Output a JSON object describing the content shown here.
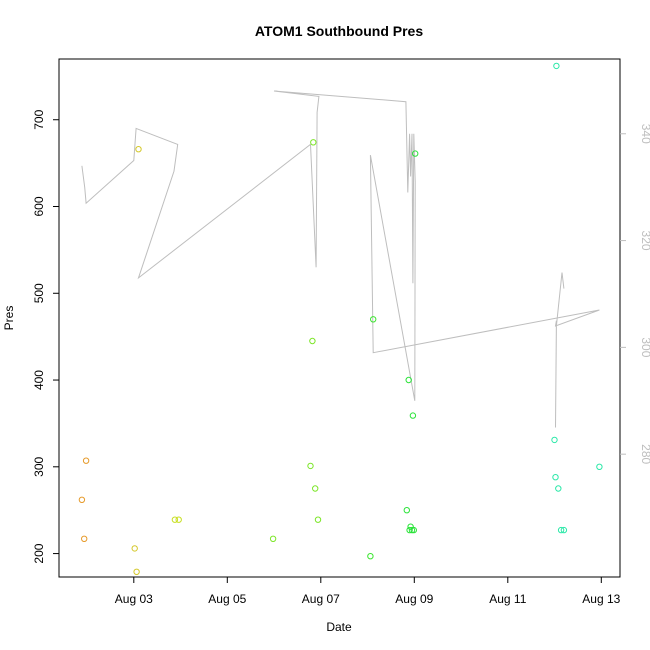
{
  "chart_data": {
    "type": "scatter",
    "title": "ATOM1 Southbound Pres",
    "xlabel": "Date",
    "ylabel": "Pres",
    "x_ticks": [
      {
        "label": "Aug 03",
        "x": 3.0
      },
      {
        "label": "Aug 05",
        "x": 5.0
      },
      {
        "label": "Aug 07",
        "x": 7.0
      },
      {
        "label": "Aug 09",
        "x": 9.0
      },
      {
        "label": "Aug 11",
        "x": 11.0
      },
      {
        "label": "Aug 13",
        "x": 13.0
      }
    ],
    "xlim": [
      1.4,
      13.4
    ],
    "ylim_left": [
      173,
      770
    ],
    "ylim_right": [
      257,
      354
    ],
    "y_ticks_left": [
      "200",
      "300",
      "400",
      "500",
      "600",
      "700"
    ],
    "y_ticks_right": [
      "280",
      "300",
      "320",
      "340"
    ],
    "grid": false,
    "legend": "none",
    "colors": {
      "axis": "#000000",
      "right_axis": "#bebebe",
      "line": "#bebebe"
    },
    "points": [
      {
        "x": 1.89,
        "y": 262,
        "color": "#e69a2a"
      },
      {
        "x": 1.94,
        "y": 217,
        "color": "#e69a2a"
      },
      {
        "x": 1.98,
        "y": 307,
        "color": "#e69a2a"
      },
      {
        "x": 3.02,
        "y": 206,
        "color": "#d4c82a"
      },
      {
        "x": 3.06,
        "y": 179,
        "color": "#d4c82a"
      },
      {
        "x": 3.1,
        "y": 666,
        "color": "#d4c82a"
      },
      {
        "x": 3.88,
        "y": 239,
        "color": "#c8df22"
      },
      {
        "x": 3.96,
        "y": 239,
        "color": "#c8df22"
      },
      {
        "x": 5.98,
        "y": 217,
        "color": "#7ce628"
      },
      {
        "x": 6.78,
        "y": 301,
        "color": "#7ce628"
      },
      {
        "x": 6.82,
        "y": 445,
        "color": "#7ce628"
      },
      {
        "x": 6.84,
        "y": 674,
        "color": "#7ce628"
      },
      {
        "x": 6.88,
        "y": 275,
        "color": "#7ce628"
      },
      {
        "x": 6.94,
        "y": 239,
        "color": "#7ce628"
      },
      {
        "x": 8.06,
        "y": 197,
        "color": "#3be62f"
      },
      {
        "x": 8.12,
        "y": 470,
        "color": "#3be62f"
      },
      {
        "x": 8.84,
        "y": 250,
        "color": "#2be33a"
      },
      {
        "x": 8.88,
        "y": 400,
        "color": "#2be33a"
      },
      {
        "x": 8.9,
        "y": 227,
        "color": "#2be33a"
      },
      {
        "x": 8.92,
        "y": 231,
        "color": "#2be33a"
      },
      {
        "x": 8.95,
        "y": 227,
        "color": "#2be33a"
      },
      {
        "x": 8.97,
        "y": 359,
        "color": "#2be33a"
      },
      {
        "x": 8.99,
        "y": 227,
        "color": "#2be33a"
      },
      {
        "x": 9.02,
        "y": 661,
        "color": "#2be33a"
      },
      {
        "x": 12.0,
        "y": 331,
        "color": "#2be8a8"
      },
      {
        "x": 12.02,
        "y": 288,
        "color": "#2be8a8"
      },
      {
        "x": 12.04,
        "y": 762,
        "color": "#2be8a8"
      },
      {
        "x": 12.08,
        "y": 275,
        "color": "#2be8a8"
      },
      {
        "x": 12.14,
        "y": 227,
        "color": "#2be8a8"
      },
      {
        "x": 12.2,
        "y": 227,
        "color": "#2be8a8"
      },
      {
        "x": 12.96,
        "y": 300,
        "color": "#2be8a8"
      }
    ],
    "secondary_line": [
      {
        "x": 1.89,
        "y": 334
      },
      {
        "x": 1.95,
        "y": 330
      },
      {
        "x": 1.98,
        "y": 327
      },
      {
        "x": 3.0,
        "y": 335
      },
      {
        "x": 3.05,
        "y": 341
      },
      {
        "x": 3.94,
        "y": 338
      },
      {
        "x": 3.86,
        "y": 333
      },
      {
        "x": 3.1,
        "y": 313
      },
      {
        "x": 6.78,
        "y": 338
      },
      {
        "x": 6.9,
        "y": 315
      },
      {
        "x": 6.92,
        "y": 344
      },
      {
        "x": 6.96,
        "y": 347
      },
      {
        "x": 6.0,
        "y": 348
      },
      {
        "x": 8.82,
        "y": 346
      },
      {
        "x": 8.86,
        "y": 329
      },
      {
        "x": 8.9,
        "y": 340
      },
      {
        "x": 8.92,
        "y": 332
      },
      {
        "x": 8.95,
        "y": 340
      },
      {
        "x": 8.97,
        "y": 312
      },
      {
        "x": 8.99,
        "y": 340
      },
      {
        "x": 9.02,
        "y": 331
      },
      {
        "x": 9.01,
        "y": 290
      },
      {
        "x": 8.06,
        "y": 336
      },
      {
        "x": 8.12,
        "y": 299
      },
      {
        "x": 12.96,
        "y": 307
      },
      {
        "x": 12.02,
        "y": 304
      },
      {
        "x": 12.04,
        "y": 305
      },
      {
        "x": 12.02,
        "y": 285
      },
      {
        "x": 12.04,
        "y": 304
      },
      {
        "x": 12.16,
        "y": 314
      },
      {
        "x": 12.2,
        "y": 311
      }
    ]
  }
}
